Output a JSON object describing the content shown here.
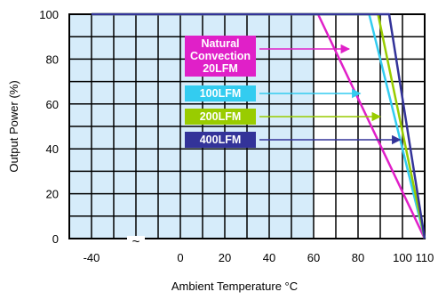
{
  "chart_data": {
    "type": "line",
    "title": "",
    "xlabel": "Ambient Temperature °C",
    "ylabel": "Output Power  (%)",
    "xlim": [
      -40,
      110
    ],
    "ylim": [
      0,
      100
    ],
    "x_ticks": [
      {
        "value": -40,
        "label": "-40"
      },
      {
        "value": -20,
        "label": "~"
      },
      {
        "value": 0,
        "label": "0"
      },
      {
        "value": 20,
        "label": "20"
      },
      {
        "value": 40,
        "label": "40"
      },
      {
        "value": 60,
        "label": "60"
      },
      {
        "value": 80,
        "label": "80"
      },
      {
        "value": 100,
        "label": "100"
      },
      {
        "value": 110,
        "label": "110"
      }
    ],
    "y_ticks": [
      {
        "value": 0,
        "label": "0"
      },
      {
        "value": 20,
        "label": "20"
      },
      {
        "value": 40,
        "label": "40"
      },
      {
        "value": 60,
        "label": "60"
      },
      {
        "value": 80,
        "label": "80"
      },
      {
        "value": 100,
        "label": "100"
      }
    ],
    "grid": true,
    "shaded_region": {
      "x_from": -40,
      "x_to": 60,
      "color": "#d6ecfa"
    },
    "series": [
      {
        "name": "Natural Convection 20LFM",
        "color": "#e020c8",
        "points": [
          [
            -40,
            100
          ],
          [
            62,
            100
          ],
          [
            110,
            0
          ]
        ]
      },
      {
        "name": "100LFM",
        "color": "#33ccf0",
        "points": [
          [
            -40,
            100
          ],
          [
            85,
            100
          ],
          [
            110,
            0
          ]
        ]
      },
      {
        "name": "200LFM",
        "color": "#99cc00",
        "points": [
          [
            -40,
            100
          ],
          [
            89,
            100
          ],
          [
            110,
            0
          ]
        ]
      },
      {
        "name": "400LFM",
        "color": "#333399",
        "points": [
          [
            -40,
            100
          ],
          [
            94,
            100
          ],
          [
            110,
            0
          ]
        ]
      }
    ],
    "annotations": [
      {
        "lines": [
          "Natural",
          "Convection",
          "20LFM"
        ],
        "color": "#e020c8",
        "arrow_to": [
          76,
          84
        ]
      },
      {
        "lines": [
          "100LFM"
        ],
        "color": "#33ccf0",
        "arrow_to": [
          81,
          64
        ]
      },
      {
        "lines": [
          "200LFM"
        ],
        "color": "#99cc00",
        "arrow_to": [
          90,
          54
        ]
      },
      {
        "lines": [
          "400LFM"
        ],
        "color": "#333399",
        "arrow_to": [
          99,
          44
        ]
      }
    ]
  }
}
